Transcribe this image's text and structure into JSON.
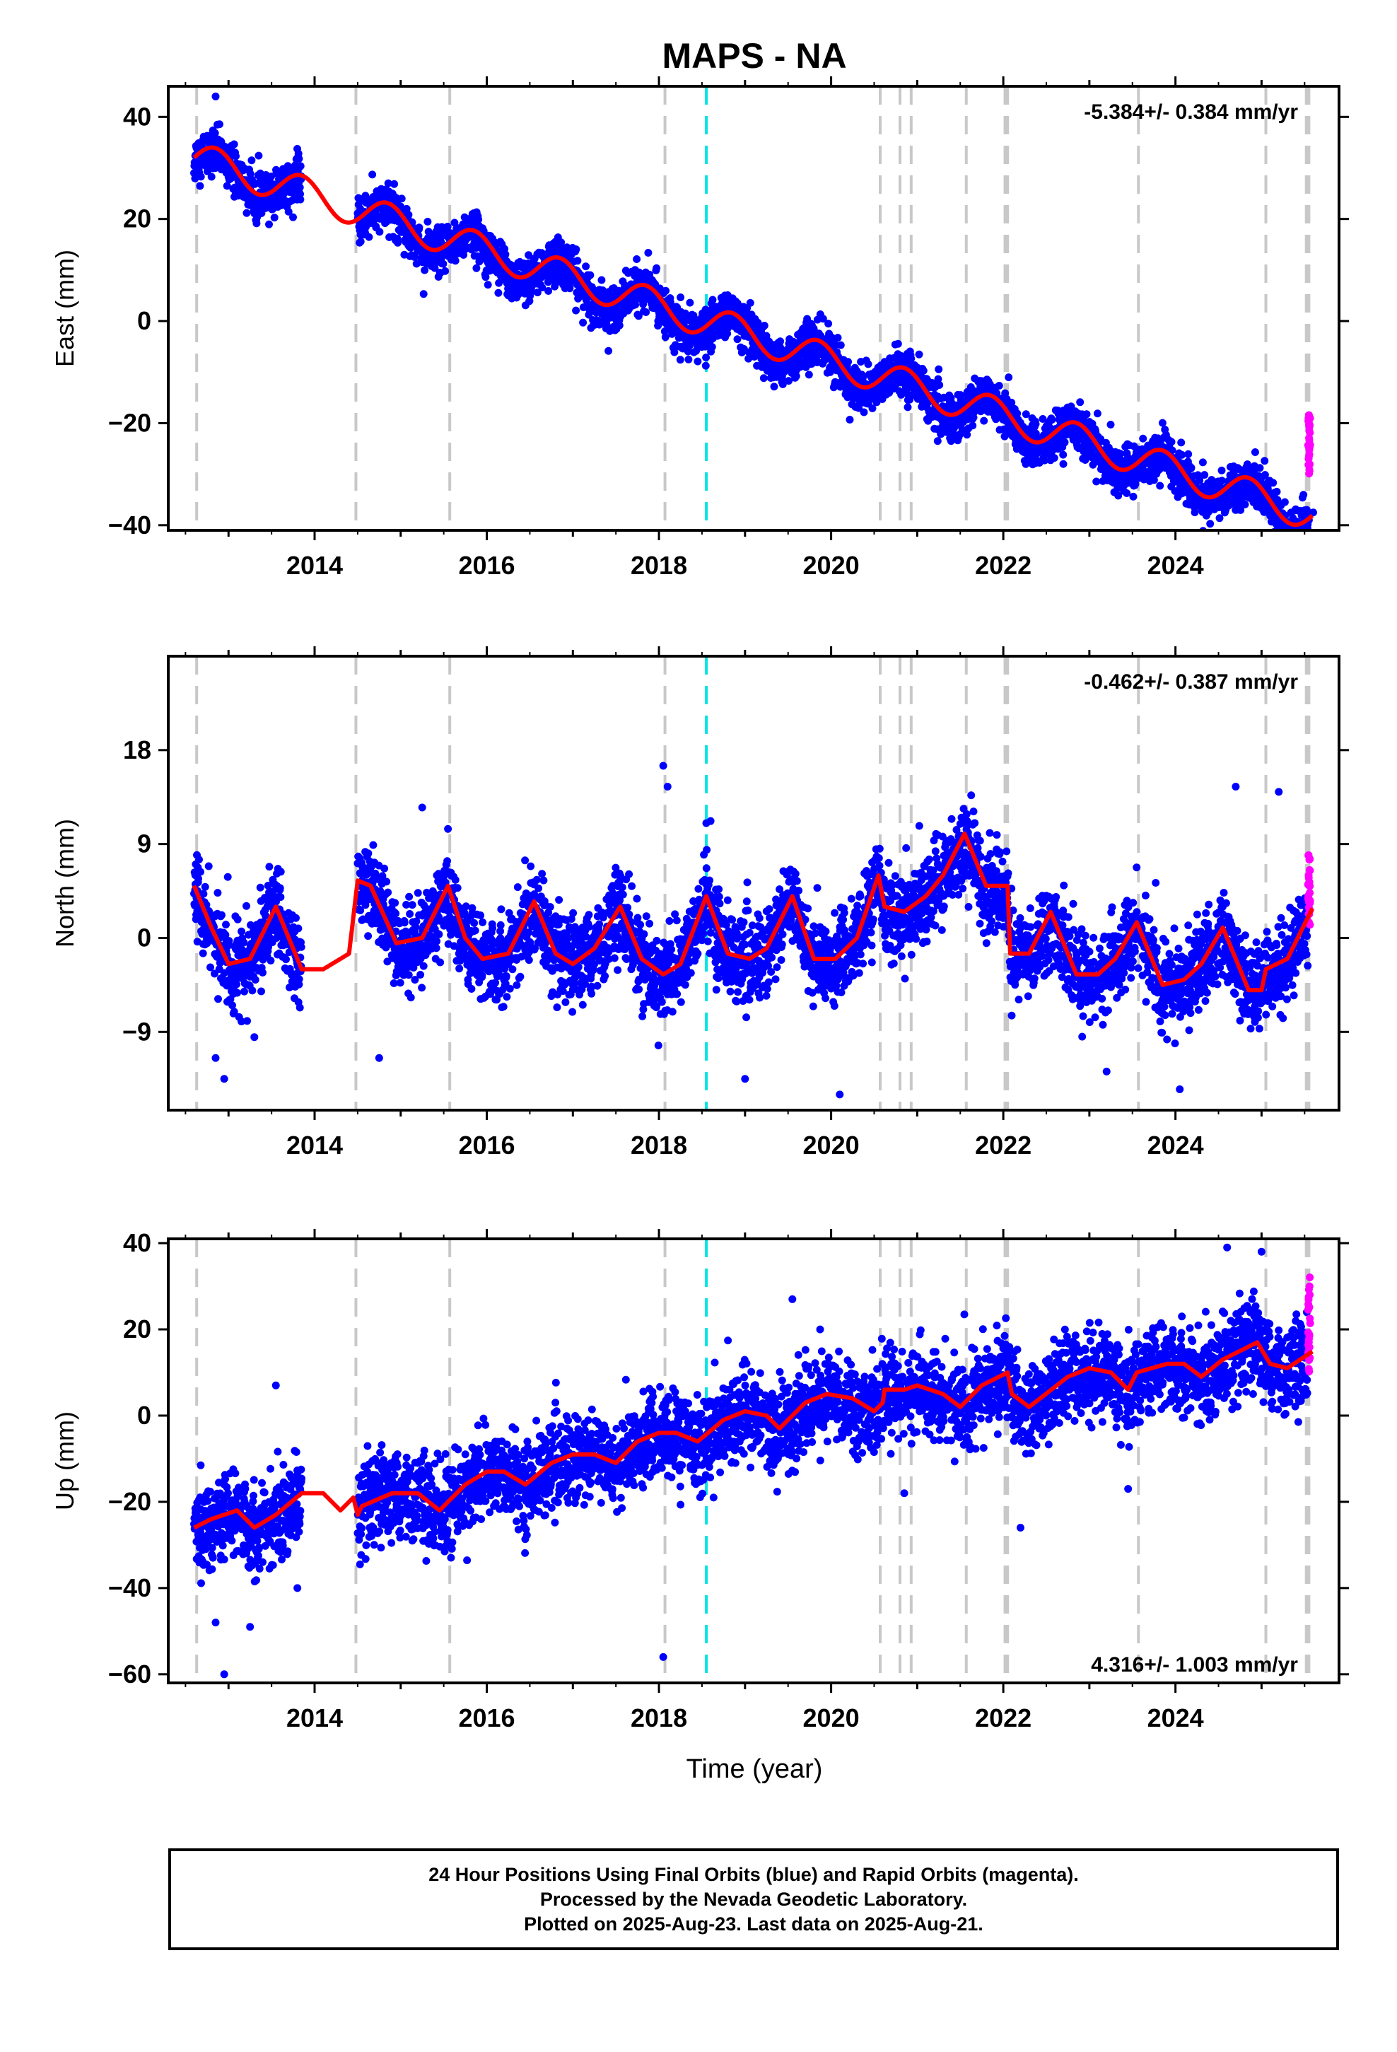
{
  "figure": {
    "title": "MAPS - NA",
    "xlabel": "Time (year)"
  },
  "footer": {
    "line1": "24 Hour Positions Using Final Orbits (blue) and Rapid Orbits (magenta).",
    "line2": "Processed by the Nevada Geodetic Laboratory.",
    "line3": "Plotted on 2025-Aug-23. Last data on 2025-Aug-21."
  },
  "colors": {
    "final_orbits": "#0000ff",
    "rapid_orbits": "#ff00ff",
    "model": "#ff0000",
    "event_lines": "#c8c8c8",
    "antenna_change": "#00e5e5"
  },
  "chart_data": [
    {
      "type": "scatter",
      "name": "east",
      "ylabel": "East (mm)",
      "rate_label": "-5.384+/- 0.384 mm/yr",
      "rate_position": "top-right",
      "xlim": [
        2012.3,
        2025.9
      ],
      "ylim": [
        -41,
        46
      ],
      "xticks": [
        2014,
        2016,
        2018,
        2020,
        2022,
        2024
      ],
      "yticks": [
        40,
        20,
        0,
        -20,
        -40
      ],
      "yticklabels": [
        "40",
        "20",
        "0",
        "−20",
        "−40"
      ],
      "trend": {
        "rate": -5.384,
        "value_at_2012_7": 31.5
      },
      "seasonal": {
        "amplitude": 3.2,
        "peak_phase": 0.85
      },
      "noise_std": 2.2,
      "rapid_range": [
        -30,
        -18
      ],
      "outliers": [
        [
          2012.85,
          44
        ],
        [
          2025.55,
          -39
        ],
        [
          2025.6,
          -37.5
        ]
      ]
    },
    {
      "type": "scatter",
      "name": "north",
      "ylabel": "North (mm)",
      "rate_label": "-0.462+/- 0.387 mm/yr",
      "rate_position": "top-right",
      "xlim": [
        2012.3,
        2025.9
      ],
      "ylim": [
        -16.5,
        27
      ],
      "xticks": [
        2014,
        2016,
        2018,
        2020,
        2022,
        2024
      ],
      "yticks": [
        18,
        9,
        0,
        -9
      ],
      "yticklabels": [
        "18",
        "9",
        "0",
        "−9"
      ],
      "model_points": [
        [
          2012.6,
          5
        ],
        [
          2012.8,
          1
        ],
        [
          2013.0,
          -2.5
        ],
        [
          2013.25,
          -2
        ],
        [
          2013.55,
          3
        ],
        [
          2013.75,
          -1
        ],
        [
          2013.85,
          -3
        ],
        [
          2014.1,
          -3
        ],
        [
          2014.4,
          -1.5
        ],
        [
          2014.5,
          5.5
        ],
        [
          2014.65,
          5
        ],
        [
          2014.95,
          -0.5
        ],
        [
          2015.25,
          0
        ],
        [
          2015.55,
          5
        ],
        [
          2015.75,
          0
        ],
        [
          2015.95,
          -2
        ],
        [
          2016.25,
          -1.5
        ],
        [
          2016.55,
          3.5
        ],
        [
          2016.8,
          -1.5
        ],
        [
          2017.0,
          -2.5
        ],
        [
          2017.25,
          -1
        ],
        [
          2017.55,
          3
        ],
        [
          2017.8,
          -2
        ],
        [
          2018.05,
          -3.5
        ],
        [
          2018.25,
          -2.5
        ],
        [
          2018.55,
          4
        ],
        [
          2018.8,
          -1.5
        ],
        [
          2019.05,
          -2
        ],
        [
          2019.25,
          -1
        ],
        [
          2019.55,
          4
        ],
        [
          2019.8,
          -2
        ],
        [
          2020.05,
          -2
        ],
        [
          2020.3,
          0
        ],
        [
          2020.55,
          6
        ],
        [
          2020.62,
          3
        ],
        [
          2020.85,
          2.5
        ],
        [
          2021.1,
          4
        ],
        [
          2021.3,
          6
        ],
        [
          2021.55,
          10
        ],
        [
          2021.8,
          5
        ],
        [
          2022.05,
          5
        ],
        [
          2022.08,
          -1.5
        ],
        [
          2022.3,
          -1.5
        ],
        [
          2022.55,
          2.5
        ],
        [
          2022.85,
          -3.5
        ],
        [
          2023.1,
          -3.5
        ],
        [
          2023.3,
          -2
        ],
        [
          2023.55,
          1.5
        ],
        [
          2023.85,
          -4.5
        ],
        [
          2024.1,
          -4
        ],
        [
          2024.3,
          -2.5
        ],
        [
          2024.55,
          1
        ],
        [
          2024.85,
          -5
        ],
        [
          2025.0,
          -5
        ],
        [
          2025.05,
          -3
        ],
        [
          2025.3,
          -2
        ],
        [
          2025.6,
          3
        ]
      ],
      "noise_std": 2.0,
      "rapid_range": [
        1,
        8
      ],
      "outliers": [
        [
          2012.85,
          -11.5
        ],
        [
          2012.95,
          -13.5
        ],
        [
          2013.3,
          -9.5
        ],
        [
          2013.15,
          -8
        ],
        [
          2014.75,
          -11.5
        ],
        [
          2018.05,
          16.5
        ],
        [
          2018.1,
          14.5
        ],
        [
          2018.55,
          11
        ],
        [
          2018.6,
          11.2
        ],
        [
          2019.0,
          -13.5
        ],
        [
          2020.1,
          -15
        ],
        [
          2024.7,
          14.5
        ],
        [
          2024.05,
          -14.5
        ],
        [
          2025.2,
          14
        ],
        [
          2023.2,
          -12.8
        ],
        [
          2015.25,
          12.5
        ]
      ]
    },
    {
      "type": "scatter",
      "name": "up",
      "ylabel": "Up (mm)",
      "rate_label": "4.316+/- 1.003 mm/yr",
      "rate_position": "bottom-right",
      "xlim": [
        2012.3,
        2025.9
      ],
      "ylim": [
        -62,
        41
      ],
      "xticks": [
        2014,
        2016,
        2018,
        2020,
        2022,
        2024
      ],
      "yticks": [
        40,
        20,
        0,
        -20,
        -40,
        -60
      ],
      "yticklabels": [
        "40",
        "20",
        "0",
        "−20",
        "−40",
        "−60"
      ],
      "model_points": [
        [
          2012.6,
          -26
        ],
        [
          2012.8,
          -24
        ],
        [
          2013.1,
          -22
        ],
        [
          2013.3,
          -26
        ],
        [
          2013.55,
          -23
        ],
        [
          2013.85,
          -18
        ],
        [
          2014.1,
          -18
        ],
        [
          2014.3,
          -22
        ],
        [
          2014.45,
          -19
        ],
        [
          2014.5,
          -23
        ],
        [
          2014.55,
          -21
        ],
        [
          2014.9,
          -18
        ],
        [
          2015.2,
          -18
        ],
        [
          2015.45,
          -22
        ],
        [
          2015.75,
          -16
        ],
        [
          2016.0,
          -13
        ],
        [
          2016.2,
          -13
        ],
        [
          2016.45,
          -16
        ],
        [
          2016.75,
          -11
        ],
        [
          2017.0,
          -9
        ],
        [
          2017.25,
          -9
        ],
        [
          2017.5,
          -11
        ],
        [
          2017.75,
          -6
        ],
        [
          2018.0,
          -4
        ],
        [
          2018.2,
          -4
        ],
        [
          2018.45,
          -6
        ],
        [
          2018.75,
          -1
        ],
        [
          2019.0,
          1
        ],
        [
          2019.25,
          0
        ],
        [
          2019.4,
          -3
        ],
        [
          2019.7,
          3
        ],
        [
          2019.95,
          5
        ],
        [
          2020.25,
          4
        ],
        [
          2020.5,
          1
        ],
        [
          2020.6,
          3
        ],
        [
          2020.62,
          6
        ],
        [
          2020.85,
          6
        ],
        [
          2021.0,
          7
        ],
        [
          2021.3,
          5
        ],
        [
          2021.5,
          2
        ],
        [
          2021.75,
          7
        ],
        [
          2022.05,
          10
        ],
        [
          2022.1,
          5
        ],
        [
          2022.3,
          2
        ],
        [
          2022.75,
          9
        ],
        [
          2023.0,
          11
        ],
        [
          2023.25,
          10
        ],
        [
          2023.45,
          6
        ],
        [
          2023.5,
          8
        ],
        [
          2023.55,
          10
        ],
        [
          2023.9,
          12
        ],
        [
          2024.1,
          12
        ],
        [
          2024.3,
          9
        ],
        [
          2024.55,
          13
        ],
        [
          2024.95,
          17
        ],
        [
          2025.1,
          12
        ],
        [
          2025.3,
          11
        ],
        [
          2025.6,
          15
        ]
      ],
      "noise_std": 5.0,
      "rapid_range": [
        10,
        33
      ],
      "outliers": [
        [
          2012.85,
          -48
        ],
        [
          2012.95,
          -60
        ],
        [
          2013.25,
          -49
        ],
        [
          2013.55,
          7
        ],
        [
          2013.8,
          -40
        ],
        [
          2018.05,
          -56
        ],
        [
          2024.6,
          39
        ],
        [
          2025.0,
          38
        ],
        [
          2022.2,
          -26
        ],
        [
          2023.45,
          -17
        ],
        [
          2020.85,
          -18
        ],
        [
          2019.55,
          27
        ]
      ]
    }
  ],
  "event_lines": [
    2012.63,
    2014.48,
    2015.57,
    2018.07,
    2020.57,
    2020.8,
    2020.93,
    2021.57,
    2022.02,
    2022.05,
    2023.57,
    2025.05,
    2025.52,
    2025.55
  ],
  "antenna_change_lines": [
    2018.55
  ],
  "data_span": {
    "start": 2012.6,
    "gap": [
      2013.85,
      2014.5
    ],
    "final_end": 2025.54,
    "rapid_start": 2025.54,
    "end": 2025.64
  }
}
